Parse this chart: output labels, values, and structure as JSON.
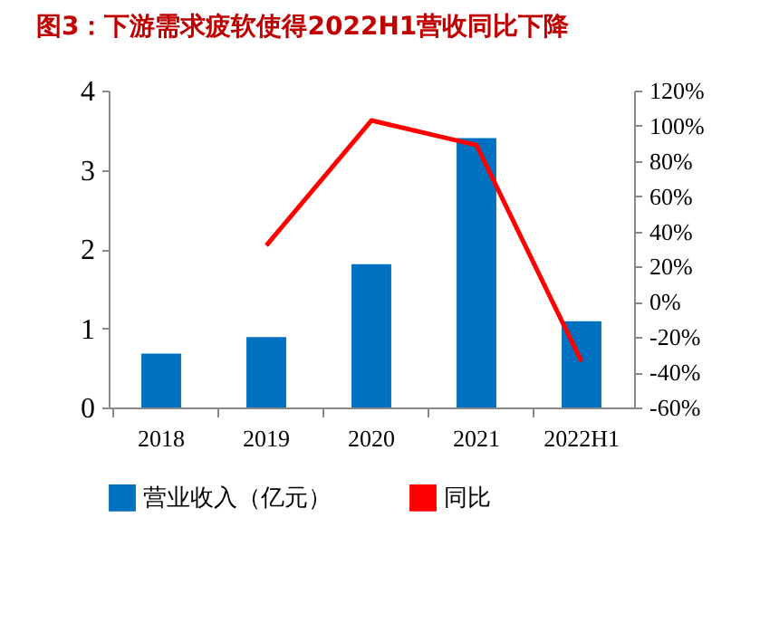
{
  "chart_data": {
    "type": "bar",
    "title": "图3：下游需求疲软使得2022H1营收同比下降",
    "categories": [
      "2018",
      "2019",
      "2020",
      "2021",
      "2022H1"
    ],
    "series": [
      {
        "name": "营业收入（亿元）",
        "color": "#0070c0",
        "values": [
          0.68,
          0.89,
          1.81,
          3.4,
          1.09
        ]
      },
      {
        "name": "同比",
        "type": "line",
        "axis": "y2",
        "color": "#ff0000",
        "values": [
          null,
          32,
          103,
          89,
          -34
        ]
      }
    ],
    "ylim": [
      0,
      4
    ],
    "yticks": [
      0,
      1,
      2,
      3,
      4
    ],
    "y2lim": [
      -60,
      120
    ],
    "y2ticks": [
      {
        "value": -60,
        "label": "-60%"
      },
      {
        "value": -40,
        "label": "-40%"
      },
      {
        "value": -20,
        "label": "-20%"
      },
      {
        "value": 0,
        "label": "0%"
      },
      {
        "value": 20,
        "label": "20%"
      },
      {
        "value": 40,
        "label": "40%"
      },
      {
        "value": 60,
        "label": "60%"
      },
      {
        "value": 80,
        "label": "80%"
      },
      {
        "value": 100,
        "label": "100%"
      },
      {
        "value": 120,
        "label": "120%"
      }
    ],
    "grid": false,
    "legend": "bottom"
  }
}
